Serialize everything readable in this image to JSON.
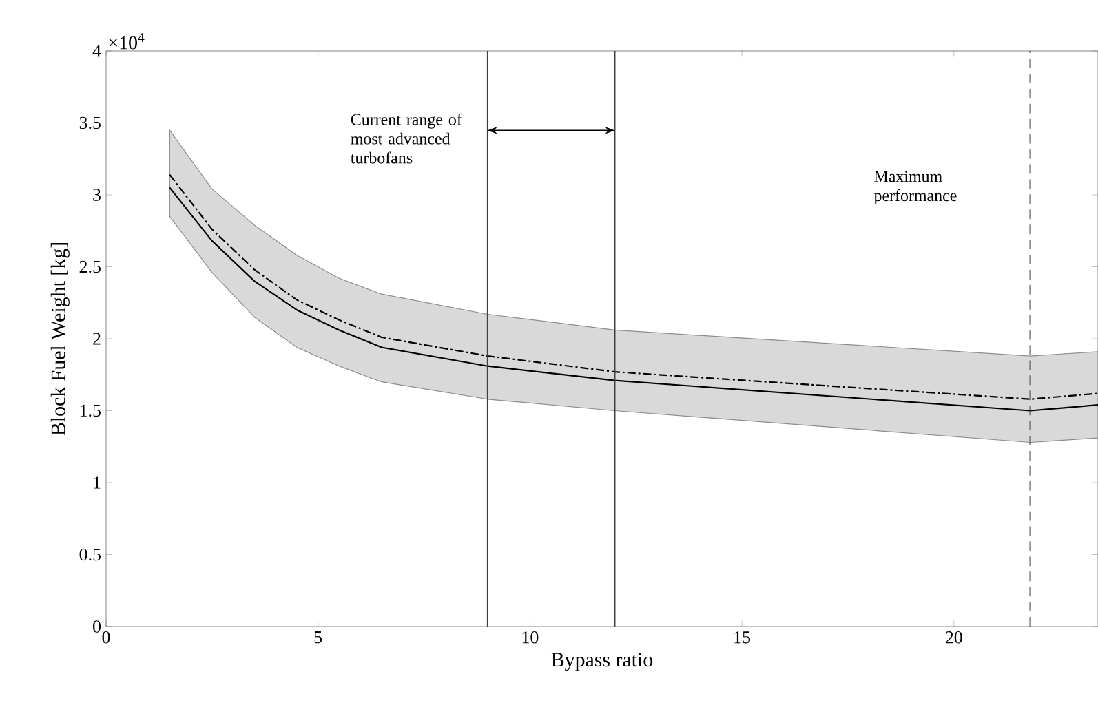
{
  "chart_data": {
    "type": "line",
    "xlabel": "Bypass ratio",
    "ylabel": "Block Fuel Weight [kg]",
    "x": [
      1.5,
      2.5,
      3.5,
      4.5,
      5.5,
      6.5,
      9,
      12,
      21.8,
      23.4
    ],
    "series": [
      {
        "color": "#000000",
        "line_style": "solid",
        "values": [
          3.05,
          2.68,
          2.4,
          2.2,
          2.06,
          1.94,
          1.81,
          1.71,
          1.5,
          1.54
        ],
        "lower": [
          2.85,
          2.46,
          2.15,
          1.94,
          1.81,
          1.7,
          1.58,
          1.5,
          1.28,
          1.31
        ],
        "upper": [
          3.45,
          3.04,
          2.79,
          2.58,
          2.42,
          2.31,
          2.17,
          2.06,
          1.88,
          1.91
        ]
      },
      {
        "color": "#000000",
        "line_style": "dashdot",
        "values": [
          3.14,
          2.76,
          2.48,
          2.27,
          2.13,
          2.01,
          1.88,
          1.77,
          1.58,
          1.62
        ]
      }
    ],
    "xlim": [
      0,
      23.4
    ],
    "ylim": [
      0,
      4
    ],
    "xticks": [
      0,
      5,
      10,
      15,
      20
    ],
    "yticks": [
      0,
      0.5,
      1,
      1.5,
      2,
      2.5,
      3,
      3.5,
      4
    ],
    "ref_lines": [
      {
        "axis": "x",
        "value": 9,
        "line_style": "solid",
        "color": "#404040"
      },
      {
        "axis": "x",
        "value": 12,
        "line_style": "solid",
        "color": "#404040"
      },
      {
        "axis": "x",
        "value": 21.8,
        "line_style": "dashed",
        "color": "#404040"
      }
    ],
    "annotations": [
      "×10$^{4}$",
      "Current range of most advanced turbofans",
      "Maximum performance"
    ],
    "marker": "none"
  }
}
